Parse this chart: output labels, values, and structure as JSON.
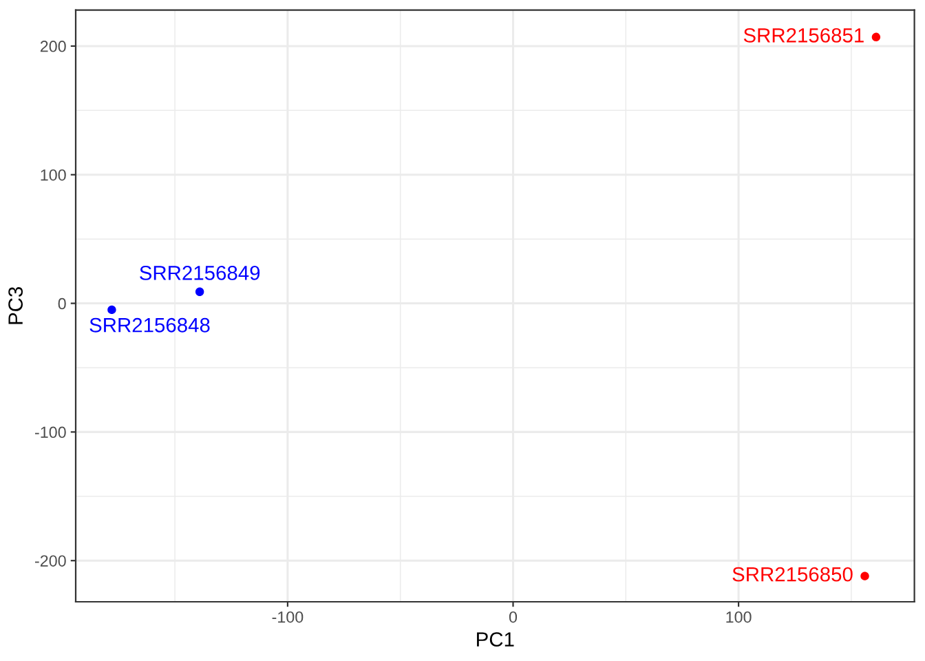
{
  "chart_data": {
    "type": "scatter",
    "xlabel": "PC1",
    "ylabel": "PC3",
    "xlim": [
      -194,
      178
    ],
    "ylim": [
      -232,
      228
    ],
    "xticks": [
      -100,
      0,
      100
    ],
    "yticks": [
      -200,
      -100,
      0,
      100,
      200
    ],
    "grid": true,
    "marker": "circle",
    "series": [
      {
        "name": "SRR2156848",
        "color": "#0000ff",
        "x": [
          -178
        ],
        "values": [
          -5
        ]
      },
      {
        "name": "SRR2156849",
        "color": "#0000ff",
        "x": [
          -139
        ],
        "values": [
          9
        ]
      },
      {
        "name": "SRR2156850",
        "color": "#ff0000",
        "x": [
          156
        ],
        "values": [
          -212
        ]
      },
      {
        "name": "SRR2156851",
        "color": "#ff0000",
        "x": [
          161
        ],
        "values": [
          207
        ]
      }
    ]
  }
}
